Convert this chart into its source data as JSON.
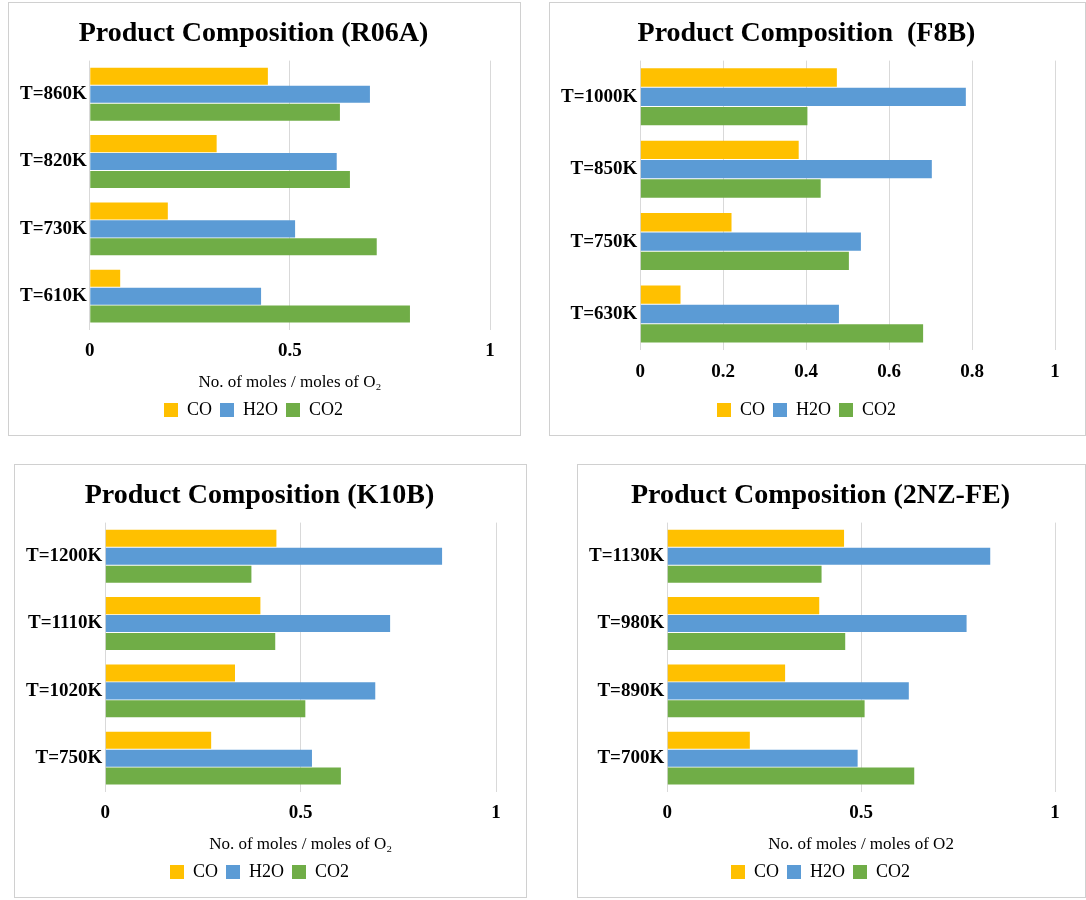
{
  "chart_data": [
    {
      "type": "bar",
      "orientation": "horizontal",
      "title": "Product Composition (R06A)",
      "xlabel": "No. of moles / moles of O₂",
      "categories": [
        "T=860K",
        "T=820K",
        "T=730K",
        "T=610K"
      ],
      "series": [
        {
          "name": "CO",
          "color": "#ffc000",
          "values": [
            0.445,
            0.317,
            0.195,
            0.076
          ]
        },
        {
          "name": "H2O",
          "color": "#5b9bd5",
          "values": [
            0.7,
            0.617,
            0.513,
            0.428
          ]
        },
        {
          "name": "CO2",
          "color": "#70ad47",
          "values": [
            0.625,
            0.65,
            0.717,
            0.8
          ]
        }
      ],
      "xlim": [
        0,
        1
      ],
      "xticks": [
        0,
        0.5,
        1
      ],
      "grid": "x",
      "legend": "bottom"
    },
    {
      "type": "bar",
      "orientation": "horizontal",
      "title": "Product Composition  (F8B)",
      "categories": [
        "T=1000K",
        "T=850K",
        "T=750K",
        "T=630K"
      ],
      "series": [
        {
          "name": "CO",
          "color": "#ffc000",
          "values": [
            0.474,
            0.382,
            0.22,
            0.097
          ]
        },
        {
          "name": "H2O",
          "color": "#5b9bd5",
          "values": [
            0.785,
            0.703,
            0.532,
            0.479
          ]
        },
        {
          "name": "CO2",
          "color": "#70ad47",
          "values": [
            0.403,
            0.435,
            0.503,
            0.682
          ]
        }
      ],
      "xlim": [
        0,
        1
      ],
      "xticks": [
        0,
        0.2,
        0.4,
        0.6,
        0.8,
        1
      ],
      "grid": "x",
      "legend": "bottom"
    },
    {
      "type": "bar",
      "orientation": "horizontal",
      "title": "Product Composition (K10B)",
      "xlabel": "No. of moles / moles of O₂",
      "categories": [
        "T=1200K",
        "T=1110K",
        "T=1020K",
        "T=750K"
      ],
      "series": [
        {
          "name": "CO",
          "color": "#ffc000",
          "values": [
            0.438,
            0.397,
            0.332,
            0.271
          ]
        },
        {
          "name": "H2O",
          "color": "#5b9bd5",
          "values": [
            0.862,
            0.729,
            0.691,
            0.529
          ]
        },
        {
          "name": "CO2",
          "color": "#70ad47",
          "values": [
            0.374,
            0.435,
            0.512,
            0.603
          ]
        }
      ],
      "xlim": [
        0,
        1
      ],
      "xticks": [
        0,
        0.5,
        1
      ],
      "grid": "x",
      "legend": "bottom"
    },
    {
      "type": "bar",
      "orientation": "horizontal",
      "title": "Product Composition (2NZ-FE)",
      "xlabel": "No. of moles / moles of O2",
      "categories": [
        "T=1130K",
        "T=980K",
        "T=890K",
        "T=700K"
      ],
      "series": [
        {
          "name": "CO",
          "color": "#ffc000",
          "values": [
            0.456,
            0.392,
            0.304,
            0.213
          ]
        },
        {
          "name": "H2O",
          "color": "#5b9bd5",
          "values": [
            0.833,
            0.772,
            0.623,
            0.491
          ]
        },
        {
          "name": "CO2",
          "color": "#70ad47",
          "values": [
            0.398,
            0.459,
            0.509,
            0.637
          ]
        }
      ],
      "xlim": [
        0,
        1
      ],
      "xticks": [
        0,
        0.5,
        1
      ],
      "grid": "x",
      "legend": "bottom"
    }
  ]
}
